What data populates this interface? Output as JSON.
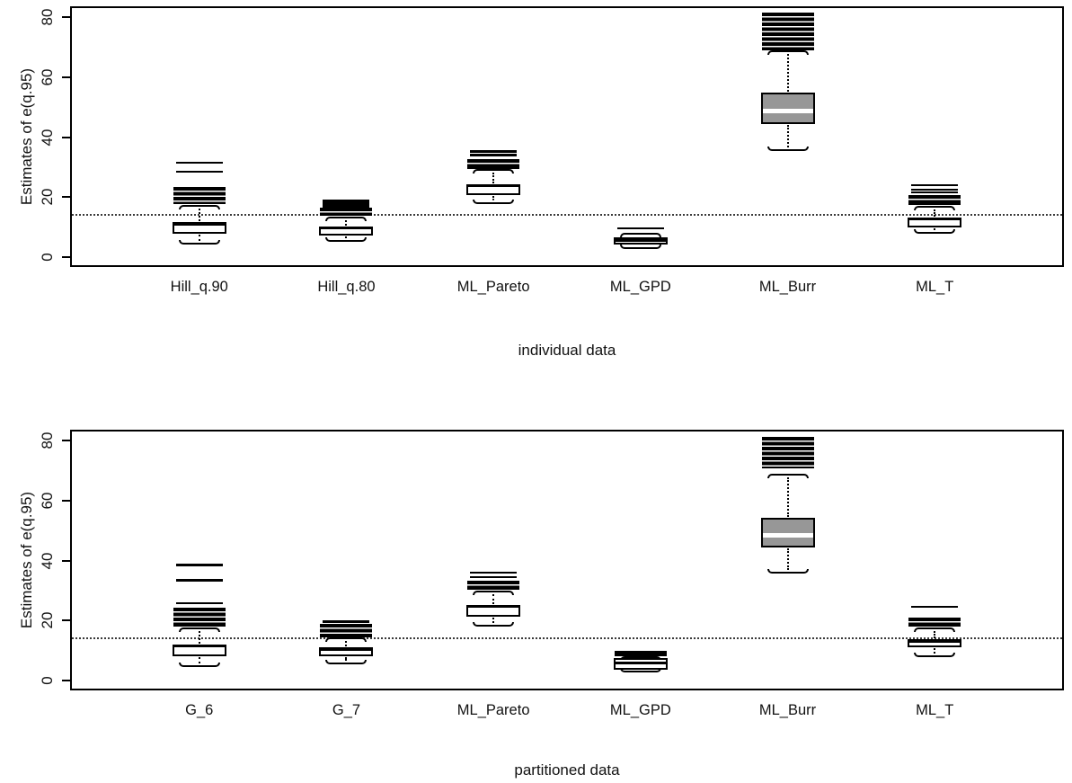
{
  "figure": {
    "background": "#ffffff",
    "line_color": "#000000",
    "burr_box_fill": "#979797",
    "burr_median_color": "#ffffff",
    "default_box_fill": "#ffffff",
    "default_median_color": "#000000",
    "reference_line_style": "dotted"
  },
  "chart_data": [
    {
      "type": "boxplot",
      "caption": "individual data",
      "ylabel": "Estimates of e(q.95)",
      "yticks": [
        0,
        20,
        40,
        60,
        80
      ],
      "ylim": [
        -3.3,
        83.6
      ],
      "grid": false,
      "reference_line_y": 14,
      "categories": [
        "Hill_q.90",
        "Hill_q.80",
        "ML_Pareto",
        "ML_GPD",
        "ML_Burr",
        "ML_T"
      ],
      "boxes": [
        {
          "label": "Hill_q.90",
          "whisker_low": 4.5,
          "q1": 7.8,
          "median": 11.0,
          "q3": 11.6,
          "whisker_high": 17.2,
          "band": [
            17.6,
            23.3
          ],
          "outlier_dashes": [
            28.6,
            31.5
          ],
          "box_fill": "#ffffff",
          "median_color": "#000000"
        },
        {
          "label": "Hill_q.80",
          "whisker_low": 5.5,
          "q1": 7.3,
          "median": 9.7,
          "q3": 10.1,
          "whisker_high": 13.3,
          "band": [
            13.8,
            16.4
          ],
          "outlier_dashes": [
            17.0,
            17.9,
            18.8
          ],
          "box_fill": "#ffffff",
          "median_color": "#000000"
        },
        {
          "label": "ML_Pareto",
          "whisker_low": 18.0,
          "q1": 20.8,
          "median": 23.7,
          "q3": 24.3,
          "whisker_high": 29.0,
          "band": [
            29.4,
            32.8
          ],
          "outlier_dashes": [
            34.1,
            35.3
          ],
          "box_fill": "#ffffff",
          "median_color": "#000000"
        },
        {
          "label": "ML_GPD",
          "whisker_low": 3.1,
          "q1": 4.3,
          "median": 5.6,
          "q3": 6.5,
          "whisker_high": 7.8,
          "band": null,
          "outlier_dashes": [
            9.6
          ],
          "box_fill": "#ffffff",
          "median_color": "#000000"
        },
        {
          "label": "ML_Burr",
          "whisker_low": 35.7,
          "q1": 44.2,
          "median": 48.7,
          "q3": 54.7,
          "whisker_high": 68.5,
          "band": [
            68.9,
            81.6
          ],
          "outlier_dashes": [],
          "box_fill": "#979797",
          "median_color": "#ffffff"
        },
        {
          "label": "ML_T",
          "whisker_low": 8.0,
          "q1": 9.8,
          "median": 12.8,
          "q3": 13.3,
          "whisker_high": 16.8,
          "band": [
            17.3,
            20.8
          ],
          "outlier_dashes": [
            21.6,
            22.6,
            24.1
          ],
          "box_fill": "#ffffff",
          "median_color": "#000000"
        }
      ]
    },
    {
      "type": "boxplot",
      "caption": "partitioned data",
      "ylabel": "Estimates of e(q.95)",
      "yticks": [
        0,
        20,
        40,
        60,
        80
      ],
      "ylim": [
        -3.3,
        83.6
      ],
      "grid": false,
      "reference_line_y": 14,
      "categories": [
        "G_6",
        "G_7",
        "ML_Pareto",
        "ML_GPD",
        "ML_Burr",
        "ML_T"
      ],
      "boxes": [
        {
          "label": "G_6",
          "whisker_low": 4.8,
          "q1": 8.1,
          "median": 11.4,
          "q3": 12.0,
          "whisker_high": 17.4,
          "band": [
            17.9,
            24.3
          ],
          "outlier_dashes": [
            25.8,
            33.5,
            38.6
          ],
          "box_fill": "#ffffff",
          "median_color": "#000000"
        },
        {
          "label": "G_7",
          "whisker_low": 5.6,
          "q1": 8.1,
          "median": 10.4,
          "q3": 11.0,
          "whisker_high": 14.0,
          "band": [
            14.5,
            18.9
          ],
          "outlier_dashes": [
            19.7
          ],
          "box_fill": "#ffffff",
          "median_color": "#000000"
        },
        {
          "label": "ML_Pareto",
          "whisker_low": 18.4,
          "q1": 21.4,
          "median": 24.8,
          "q3": 25.3,
          "whisker_high": 29.8,
          "band": [
            30.2,
            33.4
          ],
          "outlier_dashes": [
            34.6,
            36.1
          ],
          "box_fill": "#ffffff",
          "median_color": "#000000"
        },
        {
          "label": "ML_GPD",
          "whisker_low": 3.0,
          "q1": 3.6,
          "median": 5.8,
          "q3": 7.6,
          "whisker_high": 7.9,
          "band": [
            8.2,
            10.0
          ],
          "outlier_dashes": [],
          "box_fill": "#ffffff",
          "median_color": "#000000"
        },
        {
          "label": "ML_Burr",
          "whisker_low": 35.9,
          "q1": 44.2,
          "median": 48.3,
          "q3": 54.1,
          "whisker_high": 68.5,
          "band": [
            70.6,
            81.2
          ],
          "outlier_dashes": [],
          "box_fill": "#979797",
          "median_color": "#ffffff"
        },
        {
          "label": "ML_T",
          "whisker_low": 8.1,
          "q1": 11.0,
          "median": 13.0,
          "q3": 13.7,
          "whisker_high": 17.4,
          "band": [
            17.9,
            20.9
          ],
          "outlier_dashes": [
            24.6
          ],
          "box_fill": "#ffffff",
          "median_color": "#000000"
        }
      ]
    }
  ]
}
